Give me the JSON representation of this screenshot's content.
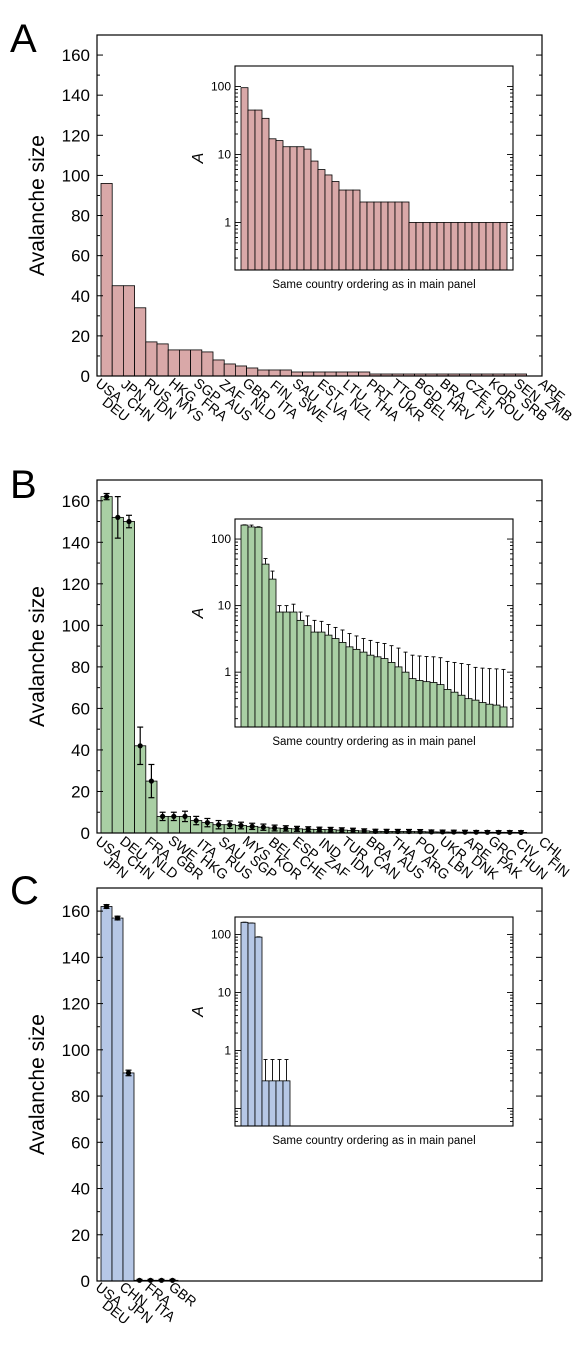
{
  "chart_data": [
    {
      "panel": "A",
      "type": "bar",
      "ylabel": "Avalanche size",
      "ylim": [
        0,
        170
      ],
      "yticks": [
        0,
        20,
        40,
        60,
        80,
        100,
        120,
        140,
        160
      ],
      "color": "#d9a8a8",
      "error_bars": false,
      "label_first_row": [
        "USA",
        "JPN",
        "RUS",
        "HKG",
        "SGP",
        "ZAF",
        "GBR",
        "FIN",
        "SAU",
        "EST",
        "LTU",
        "PRT",
        "TTO",
        "BGD",
        "BRA",
        "CZE",
        "KOR",
        "SEN",
        "ARE"
      ],
      "label_second_row": [
        "DEU",
        "CHN",
        "IDN",
        "MYS",
        "FRA",
        "AUS",
        "NLD",
        "ITA",
        "SWE",
        "LVA",
        "NZL",
        "THA",
        "UKR",
        "BEL",
        "HRV",
        "FJI",
        "ROU",
        "SRB",
        "ZMB"
      ],
      "values": [
        96,
        45,
        45,
        34,
        17,
        16,
        13,
        13,
        13,
        12,
        8,
        6,
        5,
        4,
        3,
        3,
        3,
        2,
        2,
        2,
        2,
        2,
        2,
        2,
        1,
        1,
        1,
        1,
        1,
        1,
        1,
        1,
        1,
        1,
        1,
        1,
        1,
        1
      ],
      "inset": {
        "ylabel": "A",
        "xlabel": "Same country ordering as in main panel",
        "yscale": "log",
        "yticks": [
          1,
          10,
          100
        ],
        "ylim": [
          0.2,
          200
        ]
      }
    },
    {
      "panel": "B",
      "type": "bar",
      "ylabel": "Avalanche size",
      "ylim": [
        0,
        170
      ],
      "yticks": [
        0,
        20,
        40,
        60,
        80,
        100,
        120,
        140,
        160
      ],
      "color": "#a9cfa4",
      "error_bars": true,
      "label_first_row": [
        "USA",
        "DEU",
        "FRA",
        "SWE",
        "ITA",
        "SAU",
        "MYS",
        "BEL",
        "ESP",
        "IND",
        "TUR",
        "BRA",
        "THA",
        "POL",
        "UKR",
        "ARE",
        "GRC",
        "CIV",
        "CHL"
      ],
      "label_second_row": [
        "JPN",
        "CHN",
        "NLD",
        "GBR",
        "HKG",
        "RUS",
        "SGP",
        "KOR",
        "CHE",
        "ZAF",
        "IDN",
        "CAN",
        "AUS",
        "ARG",
        "LBN",
        "DNK",
        "PAK",
        "HUN",
        "FIN"
      ],
      "values": [
        162,
        152,
        150,
        42,
        25,
        8,
        8,
        8,
        6,
        5,
        4,
        4,
        3.6,
        3.2,
        2.8,
        2.4,
        2.2,
        2.0,
        1.8,
        1.7,
        1.6,
        1.4,
        1.2,
        1.0,
        0.8,
        0.75,
        0.72,
        0.7,
        0.65,
        0.55,
        0.5,
        0.45,
        0.4,
        0.38,
        0.35,
        0.33,
        0.32,
        0.3
      ],
      "errors": [
        1.5,
        10,
        3,
        9,
        8,
        2,
        2,
        2.5,
        2,
        2,
        2,
        1.8,
        1.6,
        1.5,
        1.5,
        1.4,
        1.3,
        1.2,
        1.2,
        1.1,
        1.1,
        1.1,
        1.1,
        1.0,
        1.0,
        1.0,
        1.0,
        1.0,
        1.0,
        0.9,
        0.9,
        0.9,
        0.9,
        0.8,
        0.8,
        0.8,
        0.8,
        0.8
      ],
      "inset": {
        "ylabel": "A",
        "xlabel": "Same country ordering as in main panel",
        "yscale": "log",
        "yticks": [
          1,
          10,
          100
        ],
        "ylim": [
          0.15,
          200
        ]
      }
    },
    {
      "panel": "C",
      "type": "bar",
      "ylabel": "Avalanche size",
      "ylim": [
        0,
        170
      ],
      "yticks": [
        0,
        20,
        40,
        60,
        80,
        100,
        120,
        140,
        160
      ],
      "color": "#b6c7e6",
      "error_bars": true,
      "label_first_row": [
        "USA",
        "CHN",
        "FRA",
        "GBR"
      ],
      "label_second_row": [
        "DEU",
        "JPN",
        "ITA"
      ],
      "values": [
        162,
        157,
        90,
        0.3,
        0.3,
        0.3,
        0.3
      ],
      "errors": [
        0.8,
        0.8,
        1.2,
        0.4,
        0.4,
        0.4,
        0.4
      ],
      "inset": {
        "ylabel": "A",
        "xlabel": "Same country ordering as in main panel",
        "yscale": "log",
        "yticks": [
          1,
          10,
          100
        ],
        "ylim": [
          0.05,
          200
        ]
      }
    }
  ]
}
